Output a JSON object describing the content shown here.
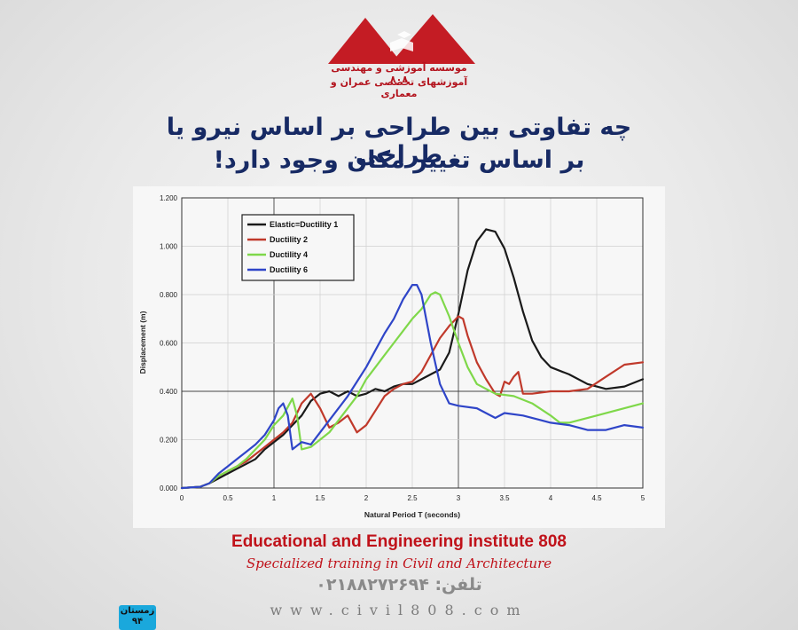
{
  "logo": {
    "line1": "موسسه آموزشی و مهندسی ۸۰۸",
    "line2": "آموزشهای تخصصی عمران و معماری",
    "color": "#c41c24"
  },
  "headline": {
    "line1": "چه تفاوتی بین طراحی بر اساس نیرو یا طراحی",
    "line2": "بر اساس تغییر مکان وجود دارد!",
    "color": "#172a64"
  },
  "chart_data": {
    "type": "line",
    "title": "",
    "xlabel": "Natural Period T (seconds)",
    "ylabel": "Displacement (m)",
    "xlim": [
      0,
      5
    ],
    "ylim": [
      0,
      1.2
    ],
    "xticks": [
      "0",
      "0.5",
      "1",
      "1.5",
      "2",
      "2.5",
      "3",
      "3.5",
      "4",
      "4.5",
      "5"
    ],
    "yticks": [
      "0.000",
      "0.200",
      "0.400",
      "0.600",
      "0.800",
      "1.000",
      "1.200"
    ],
    "grid": "major",
    "legend_position": "top-left",
    "series": [
      {
        "name": "Elastic=Ductility 1",
        "color": "#1a1a1a",
        "x": [
          0,
          0.2,
          0.3,
          0.4,
          0.5,
          0.6,
          0.7,
          0.8,
          0.9,
          1.0,
          1.1,
          1.2,
          1.3,
          1.4,
          1.5,
          1.6,
          1.7,
          1.8,
          1.9,
          2.0,
          2.1,
          2.2,
          2.3,
          2.4,
          2.5,
          2.6,
          2.7,
          2.8,
          2.9,
          3.0,
          3.1,
          3.2,
          3.3,
          3.4,
          3.5,
          3.6,
          3.7,
          3.8,
          3.9,
          4.0,
          4.2,
          4.4,
          4.6,
          4.8,
          5.0
        ],
        "y": [
          0,
          0.005,
          0.02,
          0.04,
          0.06,
          0.08,
          0.1,
          0.12,
          0.16,
          0.19,
          0.22,
          0.26,
          0.3,
          0.36,
          0.39,
          0.4,
          0.38,
          0.4,
          0.38,
          0.39,
          0.41,
          0.4,
          0.42,
          0.43,
          0.43,
          0.45,
          0.47,
          0.49,
          0.56,
          0.72,
          0.9,
          1.02,
          1.07,
          1.06,
          0.99,
          0.87,
          0.73,
          0.61,
          0.54,
          0.5,
          0.47,
          0.43,
          0.41,
          0.42,
          0.45
        ]
      },
      {
        "name": "Ductility 2",
        "color": "#c0392b",
        "x": [
          0,
          0.2,
          0.3,
          0.4,
          0.5,
          0.6,
          0.7,
          0.8,
          0.9,
          1.0,
          1.1,
          1.2,
          1.3,
          1.4,
          1.5,
          1.6,
          1.7,
          1.8,
          1.9,
          2.0,
          2.1,
          2.2,
          2.3,
          2.4,
          2.5,
          2.6,
          2.7,
          2.8,
          2.9,
          3.0,
          3.05,
          3.1,
          3.2,
          3.3,
          3.4,
          3.45,
          3.5,
          3.55,
          3.6,
          3.65,
          3.7,
          3.8,
          4.0,
          4.2,
          4.4,
          4.6,
          4.8,
          5.0
        ],
        "y": [
          0,
          0.005,
          0.02,
          0.05,
          0.07,
          0.09,
          0.11,
          0.14,
          0.17,
          0.2,
          0.23,
          0.27,
          0.35,
          0.39,
          0.33,
          0.25,
          0.27,
          0.3,
          0.23,
          0.26,
          0.32,
          0.38,
          0.41,
          0.43,
          0.44,
          0.48,
          0.55,
          0.62,
          0.67,
          0.71,
          0.7,
          0.63,
          0.52,
          0.45,
          0.39,
          0.38,
          0.44,
          0.43,
          0.46,
          0.48,
          0.39,
          0.39,
          0.4,
          0.4,
          0.41,
          0.46,
          0.51,
          0.52
        ]
      },
      {
        "name": "Ductility 4",
        "color": "#7fd84a",
        "x": [
          0,
          0.2,
          0.3,
          0.4,
          0.5,
          0.6,
          0.7,
          0.8,
          0.9,
          1.0,
          1.1,
          1.2,
          1.25,
          1.3,
          1.4,
          1.5,
          1.6,
          1.7,
          1.8,
          1.9,
          2.0,
          2.1,
          2.2,
          2.3,
          2.4,
          2.5,
          2.6,
          2.7,
          2.75,
          2.8,
          2.9,
          3.0,
          3.1,
          3.2,
          3.3,
          3.4,
          3.6,
          3.8,
          4.0,
          4.1,
          4.2,
          4.5,
          4.8,
          5.0
        ],
        "y": [
          0,
          0.005,
          0.02,
          0.05,
          0.07,
          0.09,
          0.12,
          0.16,
          0.2,
          0.26,
          0.3,
          0.37,
          0.3,
          0.16,
          0.17,
          0.2,
          0.23,
          0.28,
          0.33,
          0.38,
          0.45,
          0.5,
          0.55,
          0.6,
          0.65,
          0.7,
          0.74,
          0.8,
          0.81,
          0.8,
          0.71,
          0.6,
          0.5,
          0.43,
          0.41,
          0.39,
          0.38,
          0.35,
          0.3,
          0.27,
          0.27,
          0.3,
          0.33,
          0.35
        ]
      },
      {
        "name": "Ductility 6",
        "color": "#2f45c8",
        "x": [
          0,
          0.2,
          0.3,
          0.4,
          0.5,
          0.6,
          0.7,
          0.8,
          0.9,
          1.0,
          1.05,
          1.1,
          1.15,
          1.2,
          1.3,
          1.4,
          1.5,
          1.6,
          1.7,
          1.8,
          1.9,
          2.0,
          2.1,
          2.2,
          2.3,
          2.4,
          2.5,
          2.55,
          2.6,
          2.7,
          2.8,
          2.9,
          3.0,
          3.2,
          3.4,
          3.5,
          3.7,
          3.9,
          4.0,
          4.2,
          4.4,
          4.6,
          4.8,
          5.0
        ],
        "y": [
          0,
          0.005,
          0.02,
          0.06,
          0.09,
          0.12,
          0.15,
          0.18,
          0.22,
          0.28,
          0.33,
          0.35,
          0.3,
          0.16,
          0.19,
          0.18,
          0.23,
          0.28,
          0.33,
          0.38,
          0.44,
          0.5,
          0.57,
          0.64,
          0.7,
          0.78,
          0.84,
          0.84,
          0.8,
          0.6,
          0.43,
          0.35,
          0.34,
          0.33,
          0.29,
          0.31,
          0.3,
          0.28,
          0.27,
          0.26,
          0.24,
          0.24,
          0.26,
          0.25
        ]
      }
    ]
  },
  "footer": {
    "institute_name": "Educational and Engineering institute 808",
    "institute_sub": "Specialized training in Civil and Architecture",
    "phone": "تلفن: ۰۲۱۸۸۲۷۲۶۹۴",
    "website": "www.civil808.com",
    "season_line1": "زمستان",
    "season_line2": "۹۴",
    "accent": "#c0121a",
    "badge_color": "#1aa8dc"
  }
}
